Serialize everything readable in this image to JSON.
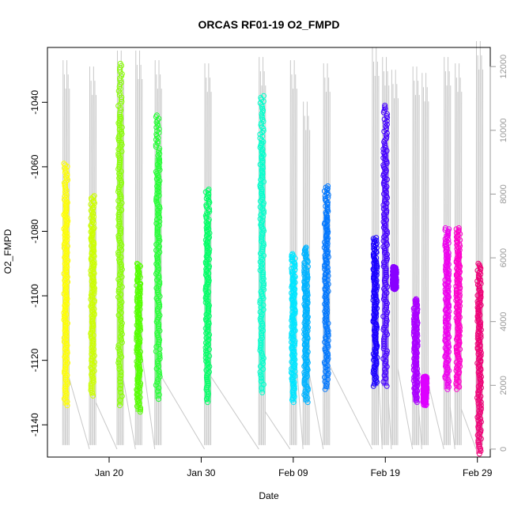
{
  "chart_data": {
    "type": "scatter",
    "title": "ORCAS RF01-19 O2_FMPD",
    "xlabel": "Date",
    "ylabel": "O2_FMPD",
    "x_ticks": [
      "Jan 20",
      "Jan 30",
      "Feb 09",
      "Feb 19",
      "Feb 29"
    ],
    "x_tick_days": [
      20,
      30,
      40,
      50,
      60
    ],
    "xlim_days": [
      13.3,
      61.4
    ],
    "ylim": [
      -1150,
      -1023
    ],
    "y_ticks": [
      -1140,
      -1120,
      -1100,
      -1080,
      -1060,
      -1040
    ],
    "y2_ticks": [
      0,
      2000,
      4000,
      6000,
      8000,
      10000,
      12000
    ],
    "y2lim": [
      -250,
      12600
    ],
    "y2_color": "#999999",
    "background_line_color": "#c8c8c8",
    "series": [
      {
        "x": 15.3,
        "o2_range": [
          -1134,
          -1059
        ],
        "altitude_max": 12200,
        "color": "#FFFF00"
      },
      {
        "x": 18.2,
        "o2_range": [
          -1131,
          -1069
        ],
        "altitude_max": 12000,
        "color": "#CCFF00"
      },
      {
        "x": 21.2,
        "o2_range": [
          -1134,
          -1028
        ],
        "altitude_max": 12500,
        "color": "#88FF00"
      },
      {
        "x": 23.2,
        "o2_range": [
          -1136,
          -1090
        ],
        "altitude_max": 12500,
        "color": "#55FF00"
      },
      {
        "x": 25.3,
        "o2_range": [
          -1132,
          -1044
        ],
        "altitude_max": 12200,
        "color": "#22FF33"
      },
      {
        "x": 30.7,
        "o2_range": [
          -1133,
          -1067
        ],
        "altitude_max": 12100,
        "color": "#00FF66"
      },
      {
        "x": 36.6,
        "o2_range": [
          -1130,
          -1038
        ],
        "altitude_max": 12300,
        "color": "#00FFCC"
      },
      {
        "x": 40.0,
        "o2_range": [
          -1133,
          -1087
        ],
        "altitude_max": 12200,
        "color": "#00E5FF"
      },
      {
        "x": 41.4,
        "o2_range": [
          -1133,
          -1085
        ],
        "altitude_max": 10900,
        "color": "#00B3FF"
      },
      {
        "x": 43.6,
        "o2_range": [
          -1129,
          -1066
        ],
        "altitude_max": 12100,
        "color": "#0077FF"
      },
      {
        "x": 48.9,
        "o2_range": [
          -1128,
          -1082
        ],
        "altitude_max": 12600,
        "color": "#1A00FF"
      },
      {
        "x": 50.0,
        "o2_range": [
          -1128,
          -1041
        ],
        "altitude_max": 12300,
        "color": "#4400FF"
      },
      {
        "x": 51.0,
        "o2_range": [
          -1098,
          -1091
        ],
        "altitude_max": 11900,
        "color": "#8800FF"
      },
      {
        "x": 53.3,
        "o2_range": [
          -1133,
          -1101
        ],
        "altitude_max": 12000,
        "color": "#AA00FF"
      },
      {
        "x": 54.3,
        "o2_range": [
          -1134,
          -1125
        ],
        "altitude_max": 11800,
        "color": "#DD00FF"
      },
      {
        "x": 56.7,
        "o2_range": [
          -1129,
          -1079
        ],
        "altitude_max": 12300,
        "color": "#EE00EE"
      },
      {
        "x": 57.9,
        "o2_range": [
          -1129,
          -1079
        ],
        "altitude_max": 12100,
        "color": "#FF00CC"
      },
      {
        "x": 60.2,
        "o2_range": [
          -1149,
          -1090
        ],
        "altitude_max": 12800,
        "color": "#EE0077"
      }
    ]
  }
}
